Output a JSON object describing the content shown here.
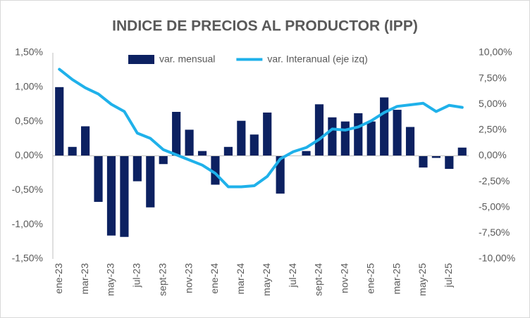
{
  "chart_data": {
    "type": "bar-line",
    "title": "INDICE DE PRECIOS AL PRODUCTOR (IPP)",
    "categories": [
      "ene-23",
      null,
      "mar-23",
      null,
      "may-23",
      null,
      "jul-23",
      null,
      "sept-23",
      null,
      "nov-23",
      null,
      "ene-24",
      null,
      "mar-24",
      null,
      "may-24",
      null,
      "jul-24",
      null,
      "sept-24",
      null,
      "nov-24",
      null,
      "ene-25",
      null,
      "mar-25",
      null,
      "may-25",
      null,
      "jul-25",
      null
    ],
    "series": [
      {
        "name": "var. mensual",
        "type": "bar",
        "color": "#0c2161",
        "values": [
          1.0,
          0.13,
          0.43,
          -0.67,
          -1.16,
          -1.18,
          -0.37,
          -0.75,
          -0.12,
          0.64,
          0.38,
          0.07,
          -0.42,
          0.13,
          0.51,
          0.31,
          0.63,
          -0.55,
          0.0,
          0.07,
          0.75,
          0.56,
          0.5,
          0.62,
          0.5,
          0.85,
          0.67,
          0.42,
          -0.17,
          -0.03,
          -0.19,
          0.12
        ]
      },
      {
        "name": "var. Interanual (eje izq)",
        "type": "line",
        "axis": "y2",
        "color": "#1fb1ea",
        "values": [
          8.4,
          7.4,
          6.6,
          6.0,
          5.0,
          4.3,
          2.2,
          1.7,
          0.6,
          0.1,
          -0.4,
          -0.9,
          -1.7,
          -3.0,
          -3.0,
          -2.9,
          -2.0,
          -0.3,
          0.4,
          0.8,
          1.6,
          2.6,
          2.5,
          2.8,
          3.4,
          4.2,
          4.8,
          4.95,
          5.1,
          4.3,
          4.9,
          4.7
        ]
      }
    ],
    "ylim": [
      -1.5,
      1.5
    ],
    "yticks": [
      {
        "value": 1.5,
        "label": "1,50%"
      },
      {
        "value": 1.0,
        "label": "1,00%"
      },
      {
        "value": 0.5,
        "label": "0,50%"
      },
      {
        "value": 0,
        "label": "0,00%"
      },
      {
        "value": -0.5,
        "label": "-0,50%"
      },
      {
        "value": -1.0,
        "label": "-1,00%"
      },
      {
        "value": -1.5,
        "label": "-1,50%"
      }
    ],
    "y2lim": [
      -10,
      10
    ],
    "y2ticks": [
      {
        "value": 10,
        "label": "10,00%"
      },
      {
        "value": 7.5,
        "label": "7,50%"
      },
      {
        "value": 5,
        "label": "5,00%"
      },
      {
        "value": 2.5,
        "label": "2,50%"
      },
      {
        "value": 0,
        "label": "0,00%"
      },
      {
        "value": -2.5,
        "label": "-2,50%"
      },
      {
        "value": -5,
        "label": "-5,00%"
      },
      {
        "value": -7.5,
        "label": "-7,50%"
      },
      {
        "value": -10,
        "label": "-10,00%"
      }
    ],
    "grid": false,
    "legend": "top"
  }
}
